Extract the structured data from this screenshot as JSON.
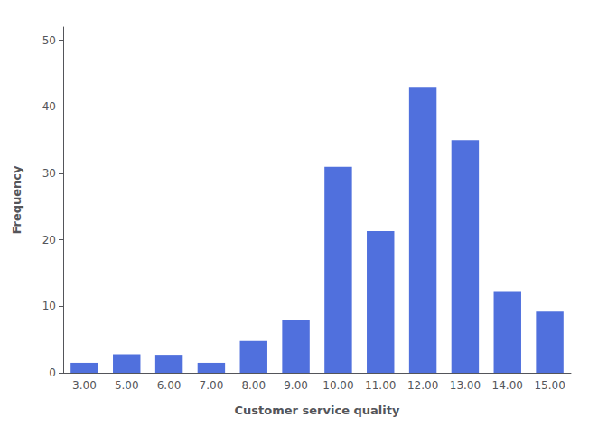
{
  "chart_data": {
    "type": "bar",
    "categories": [
      "3.00",
      "5.00",
      "6.00",
      "7.00",
      "8.00",
      "9.00",
      "10.00",
      "11.00",
      "12.00",
      "13.00",
      "14.00",
      "15.00"
    ],
    "values": [
      1.5,
      2.8,
      2.7,
      1.5,
      4.8,
      8.0,
      31.0,
      21.3,
      43.0,
      35.0,
      12.3,
      9.2
    ],
    "xlabel": "Customer service quality",
    "ylabel": "Frequency",
    "ylim": [
      0,
      52
    ],
    "yticks": [
      0,
      10,
      20,
      30,
      40,
      50
    ],
    "grid": false
  }
}
